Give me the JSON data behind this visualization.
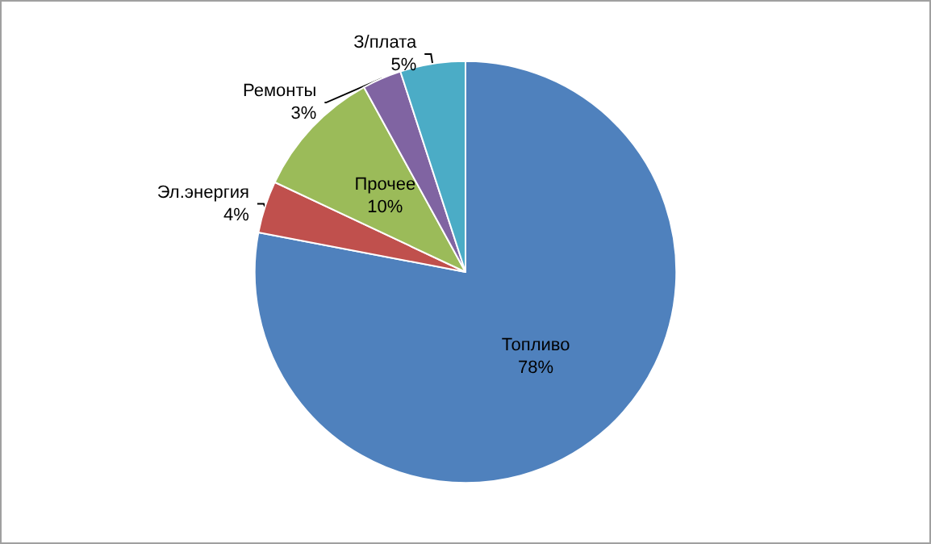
{
  "chart_data": {
    "type": "pie",
    "categories": [
      "Топливо",
      "Эл.энергия",
      "Прочее",
      "Ремонты",
      "З/плата"
    ],
    "values": [
      78,
      4,
      10,
      3,
      5
    ],
    "colors": [
      "#4f81bd",
      "#c0504d",
      "#9bbb59",
      "#8064a2",
      "#4bacc6"
    ],
    "value_labels": [
      "78%",
      "4%",
      "10%",
      "3%",
      "5%"
    ]
  }
}
